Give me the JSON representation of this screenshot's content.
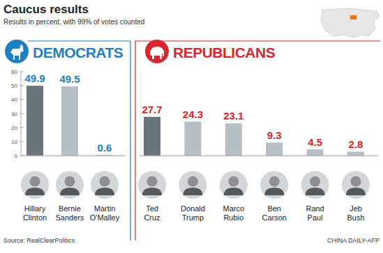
{
  "title": "Caucus results",
  "subtitle": "Results in percent, with 99% of votes counted",
  "source": "Source: RealClearPolitics",
  "credit": "CHINA DAILY-AFP",
  "chart_data": [
    {
      "type": "bar",
      "title": "DEMOCRATS",
      "categories": [
        "Hillary Clinton",
        "Bernie Sanders",
        "Martin O'Malley"
      ],
      "values": [
        49.9,
        49.5,
        0.6
      ],
      "colors": [
        "#68757b",
        "#b6bfc4",
        "#b6bfc4"
      ],
      "ylim": [
        0,
        60
      ],
      "yticks": [
        0,
        10,
        20,
        30,
        40,
        50,
        60
      ],
      "grid": false,
      "data_labels": true
    },
    {
      "type": "bar",
      "title": "REPUBLICANS",
      "categories": [
        "Ted Cruz",
        "Donald Trump",
        "Marco Rubio",
        "Ben Carson",
        "Rand Paul",
        "Jeb Bush"
      ],
      "values": [
        27.7,
        24.3,
        23.1,
        9.3,
        4.5,
        2.8
      ],
      "colors": [
        "#68757b",
        "#b6bfc4",
        "#b6bfc4",
        "#b6bfc4",
        "#b6bfc4",
        "#b6bfc4"
      ],
      "ylim": [
        0,
        60
      ],
      "grid": false,
      "data_labels": true,
      "tick_labels": false
    }
  ]
}
